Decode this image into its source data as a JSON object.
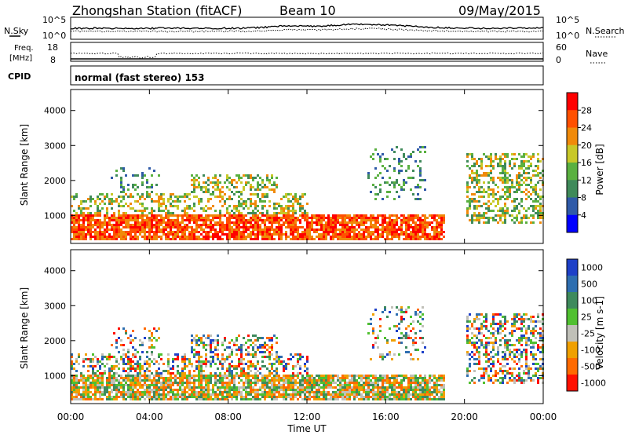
{
  "header": {
    "station": "Zhongshan Station (fitACF)",
    "beam": "Beam 10",
    "date": "09/May/2015"
  },
  "strip_labels": {
    "nsky": "N.Sky",
    "nsearch": "N.Search",
    "freq_a": "Freq.",
    "freq_b": "[MHz]",
    "nave": "Nave",
    "cpid": "CPID",
    "cpid_value": "normal (fast stereo) 153",
    "noise_ticks_left": [
      "10^5",
      "10^0"
    ],
    "noise_ticks_right": [
      "10^5",
      "10^0"
    ],
    "freq_ticks": [
      "18",
      "8"
    ],
    "nave_ticks": [
      "60",
      "0"
    ]
  },
  "colors": {
    "power": [
      "#0000ff",
      "#2f5aa8",
      "#3f8a5a",
      "#5ab040",
      "#c8c828",
      "#f08a0a",
      "#ff5000",
      "#ff0000"
    ],
    "velocity": [
      "#1e40c8",
      "#2e6eb0",
      "#3e8a5c",
      "#50c030",
      "#c0c0b8",
      "#f0a000",
      "#ff6a00",
      "#ff1000"
    ]
  },
  "chart_data": [
    {
      "type": "heatmap",
      "name": "power",
      "xlabel": "",
      "ylabel": "Slant Range [km]",
      "xlim": [
        0,
        24
      ],
      "ylim": [
        200,
        4600
      ],
      "yticks": [
        1000,
        2000,
        3000,
        4000
      ],
      "colorbar": {
        "label": "Power [dB]",
        "ticks": [
          "4",
          "8",
          "12",
          "16",
          "20",
          "24",
          "28"
        ],
        "range": [
          0,
          32
        ]
      },
      "echo_regions_hours_km": [
        {
          "x": [
            0,
            19
          ],
          "y": [
            300,
            1050
          ],
          "level": "strong"
        },
        {
          "x": [
            0,
            12
          ],
          "y": [
            1000,
            1700
          ],
          "level": "medium"
        },
        {
          "x": [
            2,
            4.5
          ],
          "y": [
            1600,
            2400
          ],
          "level": "weak"
        },
        {
          "x": [
            6,
            10.5
          ],
          "y": [
            1500,
            2200
          ],
          "level": "medium"
        },
        {
          "x": [
            15,
            18
          ],
          "y": [
            1500,
            3000
          ],
          "level": "weak"
        },
        {
          "x": [
            20,
            24
          ],
          "y": [
            800,
            2800
          ],
          "level": "medium"
        }
      ]
    },
    {
      "type": "heatmap",
      "name": "velocity",
      "xlabel": "Time UT",
      "ylabel": "Slant Range [km]",
      "xlim": [
        0,
        24
      ],
      "ylim": [
        200,
        4600
      ],
      "xticks": [
        "00:00",
        "04:00",
        "08:00",
        "12:00",
        "16:00",
        "20:00",
        "00:00"
      ],
      "yticks": [
        1000,
        2000,
        3000,
        4000
      ],
      "colorbar": {
        "label": "Velocity [m s-1]",
        "ticks": [
          "1000",
          "500",
          "100",
          "25",
          "-25",
          "-100",
          "-500",
          "-1000"
        ]
      }
    }
  ]
}
